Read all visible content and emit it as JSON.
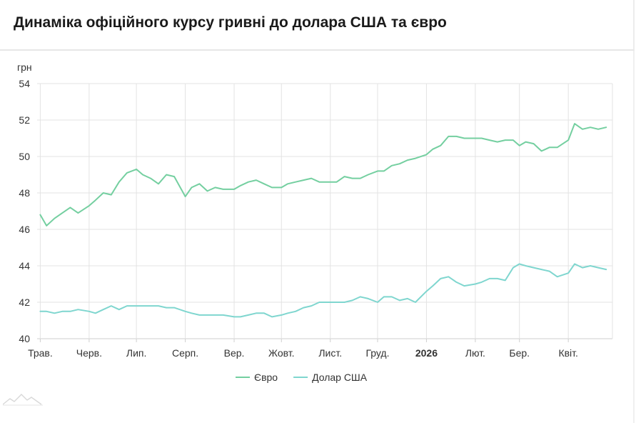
{
  "header": {
    "title": "Динаміка офіційного курсу гривні до долара США та євро"
  },
  "chart_data": {
    "type": "line",
    "title": "Динаміка офіційного курсу гривні до долара США та євро",
    "ylabel": "грн",
    "xlabel": "",
    "ylim": [
      40,
      54
    ],
    "yticks": [
      40,
      42,
      44,
      46,
      48,
      50,
      52,
      54
    ],
    "xtick_labels": [
      "Трав.",
      "Черв.",
      "Лип.",
      "Серп.",
      "Вер.",
      "Жовт.",
      "Лист.",
      "Груд.",
      "2026",
      "Лют.",
      "Бер.",
      "Квіт."
    ],
    "xtick_bold": "2026",
    "grid": true,
    "legend_position": "bottom",
    "series": [
      {
        "name": "Євро",
        "color": "#74cfa0",
        "x": [
          "2025-05-01",
          "2025-05-05",
          "2025-05-10",
          "2025-05-15",
          "2025-05-20",
          "2025-05-25",
          "2025-06-01",
          "2025-06-05",
          "2025-06-10",
          "2025-06-15",
          "2025-06-20",
          "2025-06-25",
          "2025-07-01",
          "2025-07-05",
          "2025-07-10",
          "2025-07-15",
          "2025-07-20",
          "2025-07-25",
          "2025-08-01",
          "2025-08-05",
          "2025-08-10",
          "2025-08-15",
          "2025-08-20",
          "2025-08-25",
          "2025-09-01",
          "2025-09-05",
          "2025-09-10",
          "2025-09-15",
          "2025-09-20",
          "2025-09-25",
          "2025-10-01",
          "2025-10-05",
          "2025-10-10",
          "2025-10-15",
          "2025-10-20",
          "2025-10-25",
          "2025-11-01",
          "2025-11-05",
          "2025-11-10",
          "2025-11-15",
          "2025-11-20",
          "2025-11-25",
          "2025-12-01",
          "2025-12-05",
          "2025-12-10",
          "2025-12-15",
          "2025-12-20",
          "2025-12-25",
          "2026-01-01",
          "2026-01-05",
          "2026-01-10",
          "2026-01-15",
          "2026-01-20",
          "2026-01-25",
          "2026-02-01",
          "2026-02-05",
          "2026-02-10",
          "2026-02-15",
          "2026-02-20",
          "2026-02-25",
          "2026-03-01",
          "2026-03-05",
          "2026-03-10",
          "2026-03-15",
          "2026-03-20",
          "2026-03-25",
          "2026-04-01",
          "2026-04-05",
          "2026-04-10",
          "2026-04-15",
          "2026-04-20",
          "2026-04-25"
        ],
        "values": [
          46.8,
          46.2,
          46.6,
          46.9,
          47.2,
          46.9,
          47.3,
          47.6,
          48.0,
          47.9,
          48.6,
          49.1,
          49.3,
          49.0,
          48.8,
          48.5,
          49.0,
          48.9,
          47.8,
          48.3,
          48.5,
          48.1,
          48.3,
          48.2,
          48.2,
          48.4,
          48.6,
          48.7,
          48.5,
          48.3,
          48.3,
          48.5,
          48.6,
          48.7,
          48.8,
          48.6,
          48.6,
          48.6,
          48.9,
          48.8,
          48.8,
          49.0,
          49.2,
          49.2,
          49.5,
          49.6,
          49.8,
          49.9,
          50.1,
          50.4,
          50.6,
          51.1,
          51.1,
          51.0,
          51.0,
          51.0,
          50.9,
          50.8,
          50.9,
          50.9,
          50.6,
          50.8,
          50.7,
          50.3,
          50.5,
          50.5,
          50.9,
          51.8,
          51.5,
          51.6,
          51.5,
          51.6
        ]
      },
      {
        "name": "Долар США",
        "color": "#7fd6cf",
        "x": [
          "2025-05-01",
          "2025-05-05",
          "2025-05-10",
          "2025-05-15",
          "2025-05-20",
          "2025-05-25",
          "2025-06-01",
          "2025-06-05",
          "2025-06-10",
          "2025-06-15",
          "2025-06-20",
          "2025-06-25",
          "2025-07-01",
          "2025-07-05",
          "2025-07-10",
          "2025-07-15",
          "2025-07-20",
          "2025-07-25",
          "2025-08-01",
          "2025-08-05",
          "2025-08-10",
          "2025-08-15",
          "2025-08-20",
          "2025-08-25",
          "2025-09-01",
          "2025-09-05",
          "2025-09-10",
          "2025-09-15",
          "2025-09-20",
          "2025-09-25",
          "2025-10-01",
          "2025-10-05",
          "2025-10-10",
          "2025-10-15",
          "2025-10-20",
          "2025-10-25",
          "2025-11-01",
          "2025-11-05",
          "2025-11-10",
          "2025-11-15",
          "2025-11-20",
          "2025-11-25",
          "2025-12-01",
          "2025-12-05",
          "2025-12-10",
          "2025-12-15",
          "2025-12-20",
          "2025-12-25",
          "2026-01-01",
          "2026-01-05",
          "2026-01-10",
          "2026-01-15",
          "2026-01-20",
          "2026-01-25",
          "2026-02-01",
          "2026-02-05",
          "2026-02-10",
          "2026-02-15",
          "2026-02-20",
          "2026-02-25",
          "2026-03-01",
          "2026-03-05",
          "2026-03-10",
          "2026-03-15",
          "2026-03-20",
          "2026-03-25",
          "2026-04-01",
          "2026-04-05",
          "2026-04-10",
          "2026-04-15",
          "2026-04-20",
          "2026-04-25"
        ],
        "values": [
          41.5,
          41.5,
          41.4,
          41.5,
          41.5,
          41.6,
          41.5,
          41.4,
          41.6,
          41.8,
          41.6,
          41.8,
          41.8,
          41.8,
          41.8,
          41.8,
          41.7,
          41.7,
          41.5,
          41.4,
          41.3,
          41.3,
          41.3,
          41.3,
          41.2,
          41.2,
          41.3,
          41.4,
          41.4,
          41.2,
          41.3,
          41.4,
          41.5,
          41.7,
          41.8,
          42.0,
          42.0,
          42.0,
          42.0,
          42.1,
          42.3,
          42.2,
          42.0,
          42.3,
          42.3,
          42.1,
          42.2,
          42.0,
          42.6,
          42.9,
          43.3,
          43.4,
          43.1,
          42.9,
          43.0,
          43.1,
          43.3,
          43.3,
          43.2,
          43.9,
          44.1,
          44.0,
          43.9,
          43.8,
          43.7,
          43.4,
          43.6,
          44.1,
          43.9,
          44.0,
          43.9,
          43.8
        ]
      }
    ]
  }
}
